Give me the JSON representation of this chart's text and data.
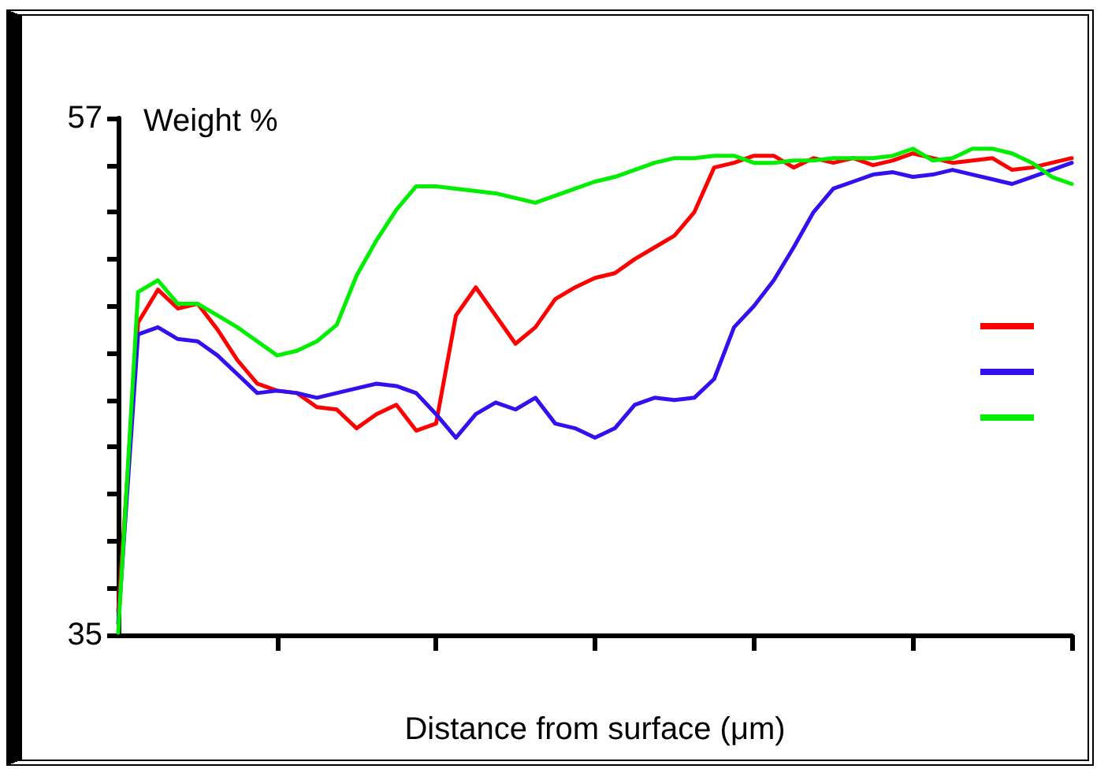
{
  "chart_data": {
    "type": "line",
    "xlabel": "Distance from surface (μm)",
    "ylabel": "Weight %",
    "categories": [
      null,
      null,
      null,
      null,
      null,
      null,
      null,
      null,
      null,
      null,
      null,
      null,
      null,
      null,
      null,
      null,
      null,
      null,
      null,
      null,
      null,
      null,
      null,
      null,
      null,
      null,
      null,
      null,
      null,
      null,
      null,
      null,
      null,
      null,
      null,
      null,
      null,
      null,
      null,
      null,
      null,
      null,
      null,
      null,
      null,
      null,
      null,
      null,
      null
    ],
    "series": [
      {
        "color": "#ff0000",
        "values": [
          36.0,
          48.3,
          49.7,
          48.9,
          49.1,
          48.0,
          46.7,
          45.7,
          45.4,
          45.3,
          44.7,
          44.6,
          43.8,
          44.4,
          44.8,
          43.7,
          44.0,
          48.6,
          49.8,
          48.6,
          47.4,
          48.1,
          49.3,
          49.8,
          50.2,
          50.4,
          51.0,
          51.5,
          52.0,
          53.0,
          54.9,
          55.1,
          55.4,
          55.4,
          54.9,
          55.3,
          55.1,
          55.3,
          55.0,
          55.2,
          55.5,
          55.3,
          55.1,
          55.2,
          55.3,
          54.8,
          54.9,
          55.1,
          55.3
        ]
      },
      {
        "color": "#3311ee",
        "values": [
          35.5,
          47.8,
          48.1,
          47.6,
          47.5,
          46.9,
          46.1,
          45.3,
          45.4,
          45.3,
          45.1,
          45.3,
          45.5,
          45.7,
          45.6,
          45.3,
          44.4,
          43.4,
          44.4,
          44.9,
          44.6,
          45.1,
          44.0,
          43.8,
          43.4,
          43.8,
          44.8,
          45.1,
          45.0,
          45.1,
          45.9,
          48.1,
          49.0,
          50.1,
          51.5,
          53.0,
          54.0,
          54.3,
          54.6,
          54.7,
          54.5,
          54.6,
          54.8,
          54.6,
          54.4,
          54.2,
          54.5,
          54.8,
          55.1
        ]
      },
      {
        "color": "#00ee00",
        "values": [
          35.1,
          49.6,
          50.1,
          49.1,
          49.1,
          48.6,
          48.1,
          47.5,
          46.9,
          47.1,
          47.5,
          48.2,
          50.3,
          51.8,
          53.1,
          54.1,
          54.1,
          54.0,
          53.9,
          53.8,
          53.6,
          53.4,
          53.7,
          54.0,
          54.3,
          54.5,
          54.8,
          55.1,
          55.3,
          55.3,
          55.4,
          55.4,
          55.1,
          55.1,
          55.2,
          55.2,
          55.3,
          55.3,
          55.3,
          55.4,
          55.7,
          55.2,
          55.3,
          55.7,
          55.7,
          55.5,
          55.1,
          54.5,
          54.2
        ]
      }
    ],
    "ylim": [
      35,
      57
    ],
    "yticks": [
      35,
      {
        "value": 37,
        "label": null
      },
      {
        "value": 39,
        "label": null
      },
      {
        "value": 41,
        "label": null
      },
      {
        "value": 43,
        "label": null
      },
      {
        "value": 45,
        "label": null
      },
      {
        "value": 47,
        "label": null
      },
      {
        "value": 49,
        "label": null
      },
      {
        "value": 51,
        "label": null
      },
      {
        "value": 53,
        "label": null
      },
      {
        "value": 55,
        "label": null
      },
      57
    ],
    "grid": false,
    "marker": "none",
    "line_style": "solid"
  }
}
